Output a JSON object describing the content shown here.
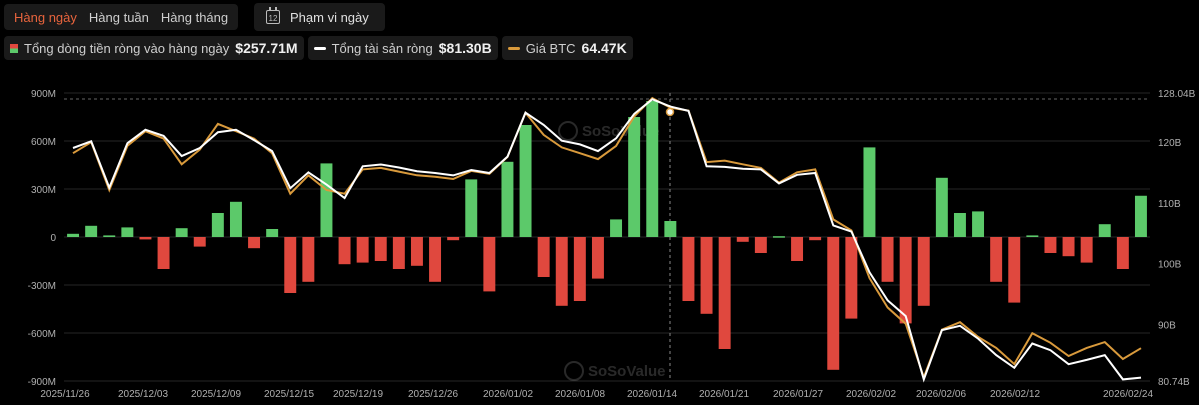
{
  "tabs": [
    {
      "label": "Hàng ngày",
      "active": true
    },
    {
      "label": "Hàng tuần",
      "active": false
    },
    {
      "label": "Hàng tháng",
      "active": false
    }
  ],
  "range_button": {
    "label": "Phạm vi ngày",
    "icon_text": "12",
    "icon": "calendar-icon"
  },
  "legend": [
    {
      "label": "Tổng dòng tiền ròng vào hàng ngày",
      "value": "$257.71M",
      "color": "#5cc96a"
    },
    {
      "label": "Tổng tài sản ròng",
      "value": "$81.30B",
      "color": "#ffffff"
    },
    {
      "label": "Giá BTC",
      "value": "64.47K",
      "color": "#e0a040"
    }
  ],
  "watermark": "SoSoValue",
  "colors": {
    "positive": "#5cc96a",
    "negative": "#e0483e",
    "net_assets": "#ffffff",
    "btc_price": "#d99a3c"
  },
  "chart_data": {
    "type": "bar",
    "y_left_ticks": [
      "900M",
      "600M",
      "300M",
      "0",
      "-300M",
      "-600M",
      "-900M"
    ],
    "y_right_ticks": [
      "128.04B",
      "120B",
      "110B",
      "100B",
      "90B",
      "80.74B"
    ],
    "x_tick_labels": [
      "2025/11/26",
      "2025/12/03",
      "2025/12/09",
      "2025/12/15",
      "2025/12/19",
      "2025/12/26",
      "2026/01/02",
      "2026/01/08",
      "2026/01/14",
      "2026/01/21",
      "2026/01/27",
      "2026/02/02",
      "2026/02/06",
      "2026/02/12",
      "2026/02/24"
    ],
    "ylim_left": [
      -900,
      900
    ],
    "ylim_right": [
      80.74,
      128.04
    ],
    "series": [
      {
        "name": "Tổng dòng tiền ròng vào hàng ngày",
        "kind": "bar",
        "unit": "M USD",
        "values": [
          20,
          70,
          10,
          60,
          -15,
          -200,
          55,
          -60,
          150,
          220,
          -70,
          50,
          -350,
          -280,
          460,
          -170,
          -160,
          -150,
          -200,
          -180,
          -280,
          -20,
          360,
          -340,
          470,
          700,
          -250,
          -430,
          -400,
          -260,
          110,
          750,
          850,
          100,
          -400,
          -480,
          -700,
          -30,
          -100,
          5,
          -150,
          -20,
          -830,
          -510,
          560,
          -280,
          -540,
          -430,
          370,
          150,
          160,
          -280,
          -410,
          10,
          -100,
          -120,
          -160,
          80,
          -200,
          257.71
        ]
      },
      {
        "name": "Tổng tài sản ròng",
        "kind": "line",
        "unit": "B USD",
        "values": [
          119.0,
          120.1,
          112.5,
          119.8,
          122.0,
          121.0,
          117.7,
          119.0,
          121.6,
          122.0,
          120.3,
          118.5,
          112.4,
          115.0,
          113.0,
          110.8,
          116.0,
          116.3,
          115.8,
          115.2,
          114.9,
          114.5,
          115.4,
          114.9,
          117.6,
          124.8,
          122.8,
          120.2,
          119.6,
          118.5,
          120.6,
          124.6,
          127.0,
          125.8,
          125.1,
          116.0,
          115.9,
          115.6,
          115.5,
          113.2,
          114.6,
          114.9,
          106.3,
          105.3,
          98.6,
          94.0,
          91.4,
          81.0,
          89.1,
          89.8,
          87.7,
          85.0,
          82.9,
          86.9,
          85.8,
          83.5,
          84.2,
          85.0,
          81.0,
          81.3
        ]
      },
      {
        "name": "Giá BTC",
        "kind": "line",
        "unit": "K USD",
        "values": [
          91.0,
          92.5,
          86.0,
          92.0,
          94.0,
          93.0,
          89.5,
          91.5,
          95.0,
          94.0,
          93.0,
          91.0,
          85.5,
          88.0,
          86.0,
          85.5,
          88.8,
          89.0,
          88.5,
          88.0,
          87.8,
          87.5,
          88.6,
          88.2,
          90.5,
          96.5,
          93.5,
          91.8,
          91.0,
          90.2,
          92.0,
          96.0,
          98.5,
          97.2,
          96.8,
          89.8,
          90.0,
          89.5,
          89.0,
          87.0,
          88.4,
          88.8,
          82.0,
          80.5,
          74.0,
          70.0,
          67.8,
          60.5,
          67.0,
          68.0,
          66.0,
          64.5,
          62.3,
          66.5,
          65.2,
          63.4,
          64.5,
          65.3,
          63.0,
          64.47
        ]
      }
    ]
  }
}
